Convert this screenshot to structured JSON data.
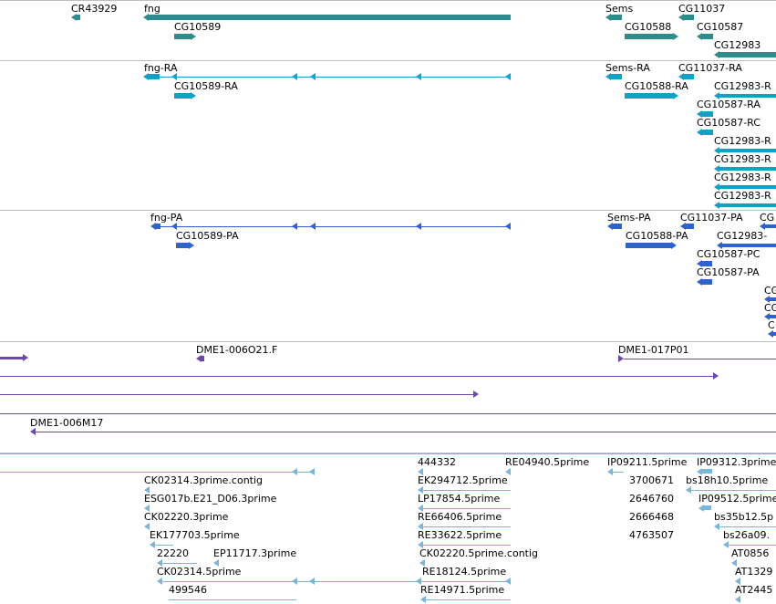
{
  "tracks": {
    "genes": {
      "labels": [
        "CR43929",
        "fng",
        "CG10589",
        "Sems",
        "CG10588",
        "CG11037",
        "CG10587",
        "CG12983"
      ]
    },
    "transcripts": {
      "labels": [
        "fng-RA",
        "CG10589-RA",
        "Sems-RA",
        "CG10588-RA",
        "CG11037-RA",
        "CG12983-R",
        "CG10587-RA",
        "CG10587-RC",
        "CG12983-R",
        "CG12983-R",
        "CG12983-R",
        "CG12983-R"
      ]
    },
    "proteins": {
      "labels": [
        "fng-PA",
        "CG10589-PA",
        "Sems-PA",
        "CG10588-PA",
        "CG11037-PA",
        "CG",
        "CG12983-",
        "CG10587-PC",
        "CG10587-PA",
        "CG",
        "CG",
        "C"
      ]
    },
    "clones": {
      "labels": [
        "DME1-006O21.F",
        "DME1-017P01",
        "DME1-006M17"
      ]
    },
    "ests": {
      "labels": [
        "CK02314.3prime.contig",
        "ESG017b.E21_D06.3prime",
        "CK02220.3prime",
        "EK177703.5prime",
        "22220",
        "EP11717.3prime",
        "CK02314.5prime",
        "499546",
        "444332",
        "RE04940.5prime",
        "EK294712.5prime",
        "LP17854.5prime",
        "RE66406.5prime",
        "RE33622.5prime",
        "CK02220.5prime.contig",
        "RE18124.5prime",
        "RE14971.5prime",
        "IP09211.5prime",
        "IP09312.3prime",
        "3700671",
        "bs18h10.5prime",
        "2646760",
        "IP09512.5prime",
        "2666468",
        "bs35b12.5p",
        "4763507",
        "bs26a09.",
        "AT0856",
        "AT1329",
        "AT2445"
      ]
    }
  }
}
